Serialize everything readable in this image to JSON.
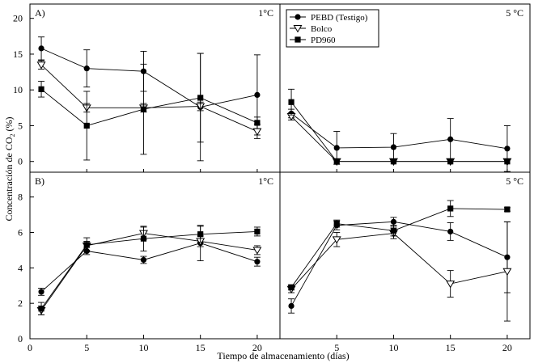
{
  "figure": {
    "xlabel": "Tiempo de almacenamiento (días)",
    "ylabel_prefix": "Concentración de CO",
    "ylabel_sub": "2",
    "ylabel_suffix": " (%)",
    "panel_labels": {
      "A": "A)",
      "B": "B)"
    },
    "temperatures": {
      "left": "1°C",
      "right": "5 °C"
    }
  },
  "chart_data": [
    {
      "id": "A-1C",
      "type": "line",
      "panel": "A",
      "temperature": "1°C",
      "x_ticks": [],
      "y_ticks": [
        0,
        5,
        10,
        15,
        20
      ],
      "xlim": [
        0,
        22
      ],
      "ylim": [
        -1.5,
        22
      ],
      "legend": "",
      "series": [
        {
          "name": "PEBD (Testigo)",
          "marker": "circle",
          "x": [
            1,
            5,
            10,
            15,
            20
          ],
          "values": [
            15.8,
            13.0,
            12.6,
            7.6,
            9.3
          ],
          "err": [
            1.6,
            2.6,
            2.8,
            7.5,
            5.6
          ]
        },
        {
          "name": "Bolco",
          "marker": "triangle-down-open",
          "x": [
            1,
            5,
            10,
            15,
            20
          ],
          "values": [
            13.5,
            7.5,
            7.5,
            7.7,
            4.2
          ],
          "err": [
            0.6,
            0.6,
            0.6,
            0.6,
            1.0
          ]
        },
        {
          "name": "PD960",
          "marker": "square",
          "x": [
            1,
            5,
            10,
            15,
            20
          ],
          "values": [
            10.1,
            5.0,
            7.3,
            8.9,
            5.4
          ],
          "err": [
            1.1,
            4.8,
            6.3,
            6.2,
            0.8
          ]
        }
      ]
    },
    {
      "id": "A-5C",
      "type": "line",
      "panel": "A",
      "temperature": "5 °C",
      "x_ticks": [],
      "y_ticks": [],
      "xlim": [
        0,
        22
      ],
      "ylim": [
        -1.5,
        22
      ],
      "legend": "top-left",
      "series": [
        {
          "name": "PEBD (Testigo)",
          "marker": "circle",
          "x": [
            1,
            5,
            10,
            15,
            20
          ],
          "values": [
            6.7,
            1.9,
            2.0,
            3.1,
            1.8
          ],
          "err": [
            0.6,
            2.3,
            1.9,
            2.9,
            3.2
          ]
        },
        {
          "name": "Bolco",
          "marker": "triangle-down-open",
          "x": [
            1,
            5,
            10,
            15,
            20
          ],
          "values": [
            6.3,
            0.0,
            0.0,
            0.0,
            0.0
          ],
          "err": [
            0.5,
            0,
            0,
            0,
            0
          ]
        },
        {
          "name": "PD960",
          "marker": "square",
          "x": [
            1,
            5,
            10,
            15,
            20
          ],
          "values": [
            8.3,
            0.0,
            0.0,
            0.0,
            0.0
          ],
          "err": [
            1.8,
            0,
            0,
            0,
            0
          ]
        }
      ]
    },
    {
      "id": "B-1C",
      "type": "line",
      "panel": "B",
      "temperature": "1°C",
      "x_ticks": [
        0,
        5,
        10,
        15,
        20
      ],
      "y_ticks": [
        0,
        2,
        4,
        6,
        8
      ],
      "xlim": [
        0,
        22
      ],
      "ylim": [
        0,
        9.4
      ],
      "legend": "",
      "series": [
        {
          "name": "PEBD (Testigo)",
          "marker": "circle",
          "x": [
            1,
            5,
            10,
            15,
            20
          ],
          "values": [
            2.65,
            4.95,
            4.45,
            5.4,
            4.35
          ],
          "err": [
            0.2,
            0.2,
            0.2,
            1.0,
            0.25
          ]
        },
        {
          "name": "Bolco",
          "marker": "triangle-down-open",
          "x": [
            1,
            5,
            10,
            15,
            20
          ],
          "values": [
            1.6,
            5.25,
            5.95,
            5.5,
            5.0
          ],
          "err": [
            0.25,
            0.25,
            0.35,
            0.3,
            0.25
          ]
        },
        {
          "name": "PD960",
          "marker": "square",
          "x": [
            1,
            5,
            10,
            15,
            20
          ],
          "values": [
            1.7,
            5.3,
            5.65,
            5.9,
            6.05
          ],
          "err": [
            0.35,
            0.4,
            0.7,
            0.45,
            0.25
          ]
        }
      ]
    },
    {
      "id": "B-5C",
      "type": "line",
      "panel": "B",
      "temperature": "5 °C",
      "x_ticks": [
        5,
        10,
        15,
        20
      ],
      "y_ticks": [],
      "xlim": [
        0,
        22
      ],
      "ylim": [
        0,
        9.4
      ],
      "legend": "",
      "series": [
        {
          "name": "PEBD (Testigo)",
          "marker": "circle",
          "x": [
            1,
            5,
            10,
            15,
            20
          ],
          "values": [
            1.85,
            6.4,
            6.6,
            6.05,
            4.6
          ],
          "err": [
            0.4,
            0.25,
            0.25,
            0.5,
            2.0
          ]
        },
        {
          "name": "Bolco",
          "marker": "triangle-down-open",
          "x": [
            1,
            5,
            10,
            15,
            20
          ],
          "values": [
            2.8,
            5.6,
            5.95,
            3.1,
            3.8
          ],
          "err": [
            0.2,
            0.4,
            0.3,
            0.75,
            2.8
          ]
        },
        {
          "name": "PD960",
          "marker": "square",
          "x": [
            1,
            5,
            10,
            15,
            20
          ],
          "values": [
            2.9,
            6.5,
            6.1,
            7.35,
            7.3
          ],
          "err": [
            0.15,
            0.2,
            0.3,
            0.45,
            0.1
          ]
        }
      ]
    }
  ]
}
